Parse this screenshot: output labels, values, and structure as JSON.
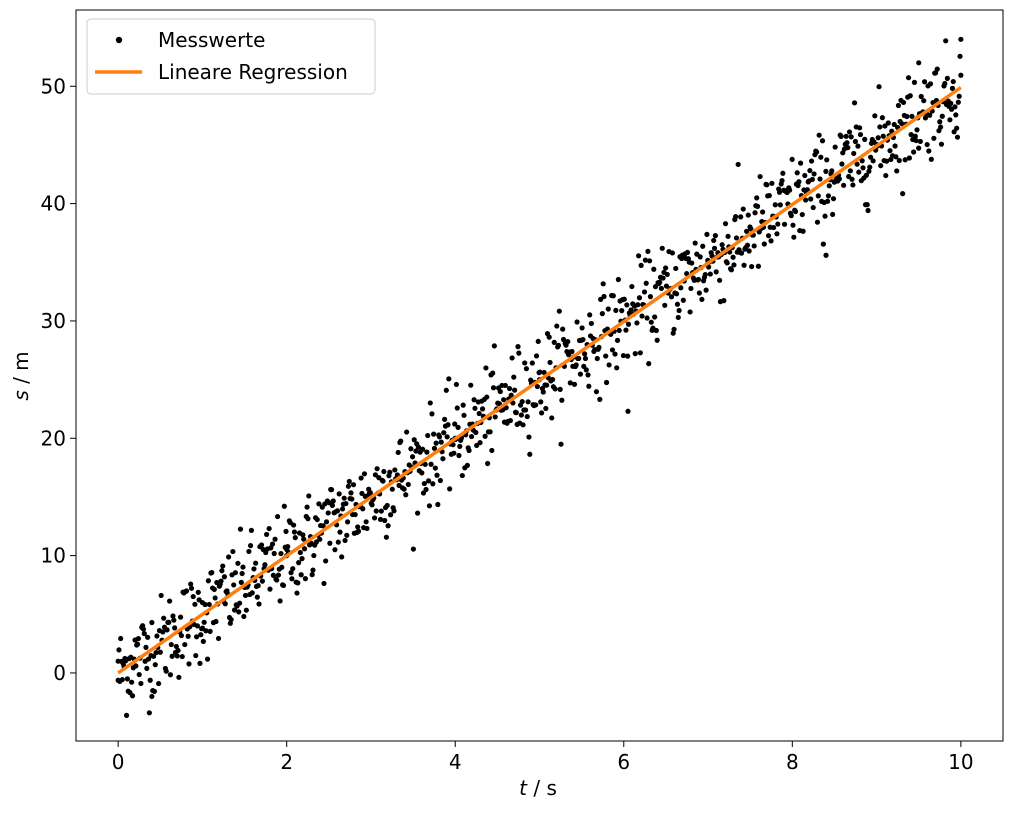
{
  "chart_data": {
    "type": "scatter",
    "title": "",
    "xlabel": "t / s",
    "ylabel": "s / m",
    "xlabel_var": "t",
    "xlabel_unit": "s",
    "ylabel_var": "s",
    "ylabel_unit": "m",
    "xlim": [
      -0.5,
      10.5
    ],
    "ylim": [
      -5.8,
      56.5
    ],
    "xticks": [
      0,
      2,
      4,
      6,
      8,
      10
    ],
    "yticks": [
      0,
      10,
      20,
      30,
      40,
      50
    ],
    "xtick_labels": [
      "0",
      "2",
      "4",
      "6",
      "8",
      "10"
    ],
    "ytick_labels": [
      "0",
      "10",
      "20",
      "30",
      "40",
      "50"
    ],
    "grid": false,
    "legend_position": "top-left",
    "series": [
      {
        "name": "Messwerte",
        "kind": "scatter",
        "color": "#000000",
        "generated": true,
        "n_points": 1000,
        "x_range": [
          0,
          10
        ],
        "model_slope": 5.0,
        "model_intercept": 0.0,
        "noise_sd": 2.0,
        "sample_points": [
          {
            "x": 0.0,
            "y": 1.0
          },
          {
            "x": 0.4,
            "y": -2.0
          },
          {
            "x": 1.0,
            "y": 6.0
          },
          {
            "x": 2.0,
            "y": 10.0
          },
          {
            "x": 3.0,
            "y": 15.0
          },
          {
            "x": 4.0,
            "y": 20.0
          },
          {
            "x": 5.0,
            "y": 25.0
          },
          {
            "x": 6.05,
            "y": 22.3
          },
          {
            "x": 7.0,
            "y": 35.0
          },
          {
            "x": 8.4,
            "y": 35.6
          },
          {
            "x": 9.5,
            "y": 52.0
          },
          {
            "x": 10.0,
            "y": 54.0
          }
        ]
      },
      {
        "name": "Lineare Regression",
        "kind": "line",
        "color": "#ff7f0e",
        "x": [
          0,
          10
        ],
        "y": [
          0.0,
          49.9
        ]
      }
    ]
  }
}
